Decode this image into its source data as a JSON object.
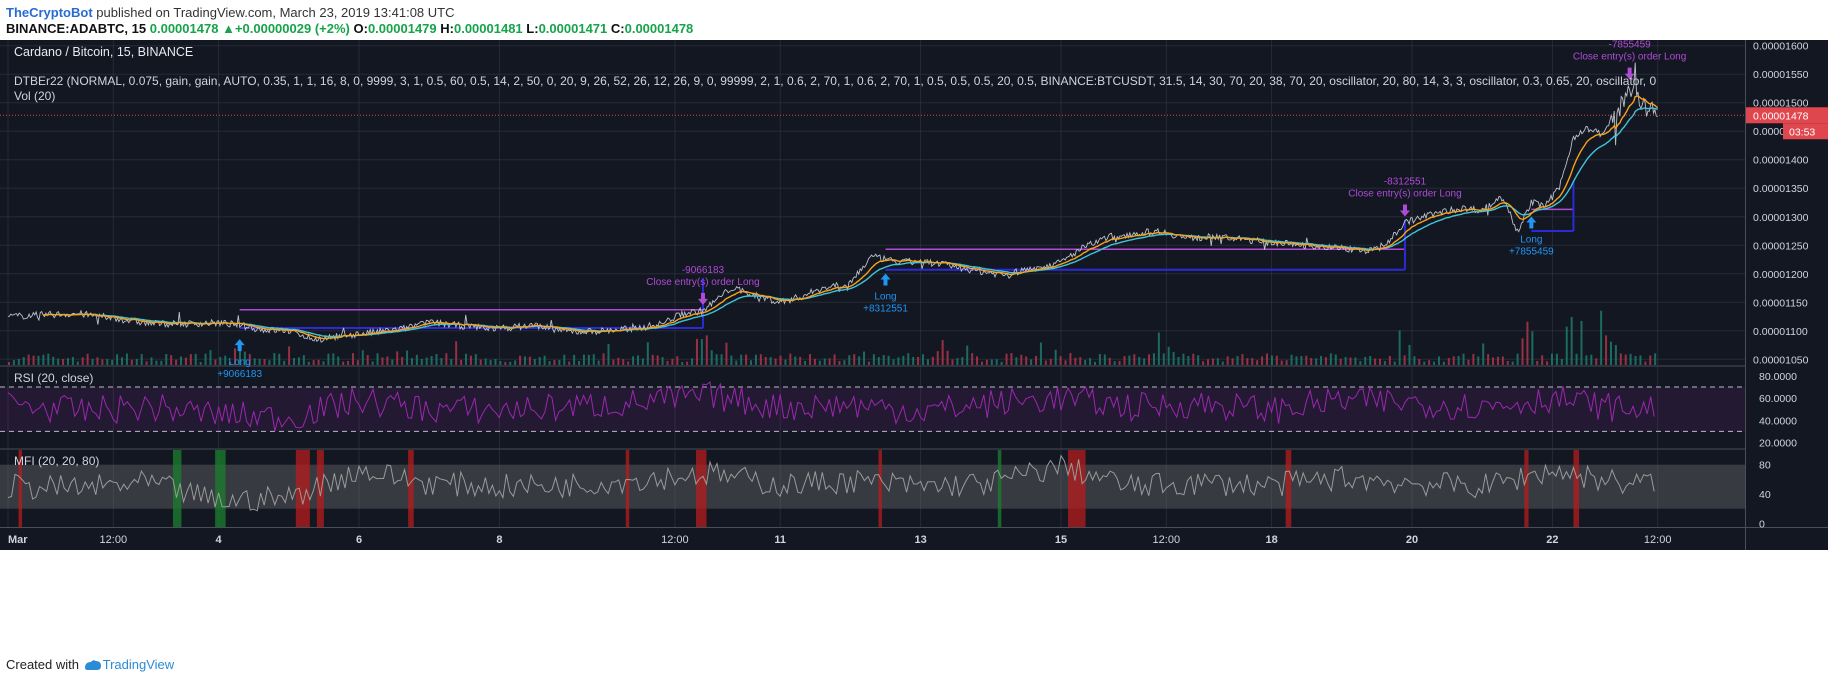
{
  "header": {
    "user": "TheCryptoBot",
    "published_text": " published on TradingView.com, March 23, 2019 13:41:08 UTC",
    "symbol": "BINANCE:ADABTC, 15",
    "last": "0.00001478",
    "change": "+0.00000029 (+2%)",
    "o_label": "O:",
    "o": "0.00001479",
    "h_label": "H:",
    "h": "0.00001481",
    "l_label": "L:",
    "l": "0.00001471",
    "c_label": "C:",
    "c": "0.00001478"
  },
  "footer": {
    "created_with": "Created with",
    "brand": "TradingView"
  },
  "colors": {
    "background": "#131722",
    "grid": "#363a45",
    "text": "#d1d4dc",
    "price_line": "#e0464e",
    "strategy_marker": "#b04bd6",
    "long_marker": "#2196f3",
    "stop_line": "#2a2ad6",
    "ema_fast": "#f7a21b",
    "ema_slow": "#40c4d8",
    "rsi": "#9c27b0",
    "mfi": "#8a8a8a",
    "mfi_high": "#b71c1c",
    "mfi_low": "#1b7a2e",
    "vol_up": "#1f7a6b",
    "vol_down": "#b0354a"
  },
  "chart_data": [
    {
      "type": "line",
      "pane": "price",
      "title": "Cardano / Bitcoin, 15, BINANCE",
      "indicator_legend": "DTBEr22 (NORMAL, 0.075,  gain,  gain, AUTO, 0.35, 1, 1, 16, 8, 0, 9999, 3, 1, 0.5, 60, 0.5, 14, 2, 50, 0, 20, 9, 26, 52, 26, 12, 26, 9, 0, 99999, 2, 1, 0.6, 2, 70, 1, 0.6, 2, 70, 1, 0.5, 0.5, 0.5, 20, 0.5, BINANCE:BTCUSDT, 31.5, 14, 30, 70, 20, 38, 70, 20, oscillator, 20, 80, 14, 3, 3, oscillator, 0.3, 0.65, 20, oscillator, 0",
      "volume_legend": "Vol (20)",
      "x_ticks": [
        "Mar",
        "12:00",
        "4",
        "6",
        "8",
        "12:00",
        "11",
        "13",
        "15",
        "12:00",
        "18",
        "20",
        "22",
        "12:00"
      ],
      "y_ticks": [
        "0.00001600",
        "0.00001550",
        "0.00001500",
        "0.00001450",
        "0.00001400",
        "0.00001350",
        "0.00001300",
        "0.00001250",
        "0.00001200",
        "0.00001150",
        "0.00001100",
        "0.00001050"
      ],
      "ylim": [
        1.04e-05,
        1.61e-05
      ],
      "last_price_label": "0.00001478",
      "countdown_label": "03:53",
      "last_price": 1.478e-05,
      "x": [
        0,
        0.5,
        1,
        1.5,
        2,
        2.5,
        3,
        3.3,
        3.6,
        4,
        4.4,
        4.8,
        5.2,
        5.6,
        6,
        6.5,
        7,
        7.5,
        8,
        8.5,
        9,
        9.3,
        9.6,
        9.9,
        10.3,
        10.7,
        11,
        11.3,
        11.6,
        12,
        12.3,
        12.7,
        13,
        13.4,
        13.8,
        14.2,
        14.6,
        15,
        15.3,
        15.7,
        16,
        16.4,
        16.8,
        17.2,
        17.6,
        18,
        18.5,
        19,
        19.4,
        19.6,
        19.9,
        20.3,
        20.7,
        21,
        21.3,
        21.5,
        21.7,
        21.9,
        22.1,
        22.3,
        22.5,
        22.7,
        22.9,
        23.1,
        23.3,
        23.5
      ],
      "y": [
        1.125e-05,
        1.128e-05,
        1.13e-05,
        1.122e-05,
        1.113e-05,
        1.112e-05,
        1.114e-05,
        1.11e-05,
        1.102e-05,
        1.1e-05,
        1.085e-05,
        1.092e-05,
        1.097e-05,
        1.103e-05,
        1.115e-05,
        1.108e-05,
        1.104e-05,
        1.11e-05,
        1.098e-05,
        1.1e-05,
        1.105e-05,
        1.112e-05,
        1.13e-05,
        1.135e-05,
        1.175e-05,
        1.16e-05,
        1.15e-05,
        1.16e-05,
        1.175e-05,
        1.185e-05,
        1.23e-05,
        1.22e-05,
        1.222e-05,
        1.215e-05,
        1.205e-05,
        1.198e-05,
        1.21e-05,
        1.22e-05,
        1.245e-05,
        1.265e-05,
        1.27e-05,
        1.275e-05,
        1.262e-05,
        1.265e-05,
        1.26e-05,
        1.255e-05,
        1.25e-05,
        1.245e-05,
        1.24e-05,
        1.248e-05,
        1.29e-05,
        1.305e-05,
        1.315e-05,
        1.312e-05,
        1.335e-05,
        1.275e-05,
        1.325e-05,
        1.32e-05,
        1.35e-05,
        1.44e-05,
        1.455e-05,
        1.445e-05,
        1.475e-05,
        1.53e-05,
        1.495e-05,
        1.478e-05
      ],
      "x_unit": "days since Mar 1",
      "annotations": [
        {
          "kind": "long",
          "x": 3.3,
          "label": "Long",
          "value": "+9066183"
        },
        {
          "kind": "close",
          "x": 9.9,
          "label": "Close entry(s) order Long",
          "value": "-9066183"
        },
        {
          "kind": "long",
          "x": 12.5,
          "label": "Long",
          "value": "+8312551"
        },
        {
          "kind": "close",
          "x": 19.9,
          "label": "Close entry(s) order Long",
          "value": "-8312551"
        },
        {
          "kind": "long",
          "x": 21.7,
          "label": "Long",
          "value": "+7855459"
        },
        {
          "kind": "close",
          "x": 23.1,
          "label": "Close entry(s) order Long",
          "value": "-7855459"
        }
      ]
    },
    {
      "type": "line",
      "pane": "rsi",
      "title": "RSI (20, close)",
      "y_ticks": [
        "80.0000",
        "60.0000",
        "40.0000",
        "20.0000"
      ],
      "ylim": [
        15,
        88
      ],
      "bands": [
        30,
        70
      ],
      "x": [
        0,
        1,
        2,
        3,
        4,
        5,
        6,
        7,
        8,
        9,
        10,
        11,
        12,
        13,
        14,
        15,
        16,
        17,
        18,
        19,
        20,
        21,
        22,
        23
      ],
      "y": [
        55,
        48,
        52,
        45,
        42,
        58,
        50,
        49,
        52,
        56,
        62,
        52,
        54,
        48,
        55,
        60,
        52,
        55,
        49,
        58,
        56,
        52,
        60,
        50
      ]
    },
    {
      "type": "line",
      "pane": "mfi",
      "title": "MFI (20, 20, 80)",
      "y_ticks": [
        "80",
        "40",
        "0"
      ],
      "ylim": [
        -5,
        100
      ],
      "bands": [
        20,
        80
      ],
      "x": [
        0,
        1,
        2,
        3,
        4,
        5,
        6,
        7,
        8,
        9,
        10,
        11,
        12,
        13,
        14,
        15,
        16,
        17,
        18,
        19,
        20,
        21,
        22,
        23
      ],
      "y": [
        50,
        48,
        55,
        30,
        35,
        72,
        55,
        50,
        52,
        60,
        68,
        52,
        58,
        50,
        55,
        78,
        50,
        55,
        52,
        62,
        55,
        50,
        72,
        55
      ]
    }
  ]
}
